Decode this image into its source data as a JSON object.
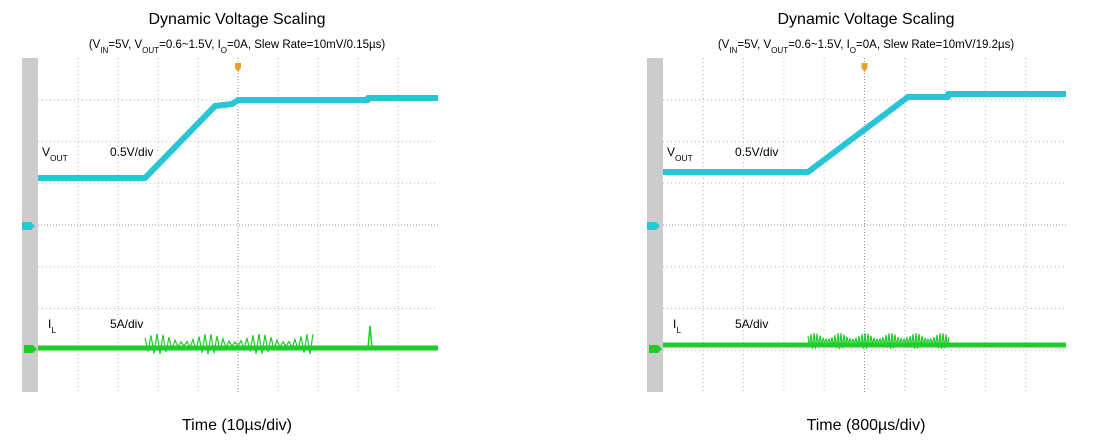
{
  "panels": [
    {
      "title": "Dynamic Voltage Scaling",
      "subtitle": [
        "(V",
        "IN",
        "=5V, V",
        "OUT",
        "=0.6~1.5V, I",
        "O",
        "=0A, Slew Rate=10mV/0.15µs)"
      ],
      "vout_label": [
        "V",
        "OUT"
      ],
      "vout_scale": "0.5V/div",
      "il_label": [
        "I",
        "L"
      ],
      "il_scale": "5A/div",
      "x_label": "Time (10µs/div)"
    },
    {
      "title": "Dynamic Voltage Scaling",
      "subtitle": [
        "(V",
        "IN",
        "=5V, V",
        "OUT",
        "=0.6~1.5V, I",
        "O",
        "=0A, Slew Rate=10mV/19.2µs)"
      ],
      "vout_label": [
        "V",
        "OUT"
      ],
      "vout_scale": "0.5V/div",
      "il_label": [
        "I",
        "L"
      ],
      "il_scale": "5A/div",
      "x_label": "Time (800µs/div)"
    }
  ]
}
